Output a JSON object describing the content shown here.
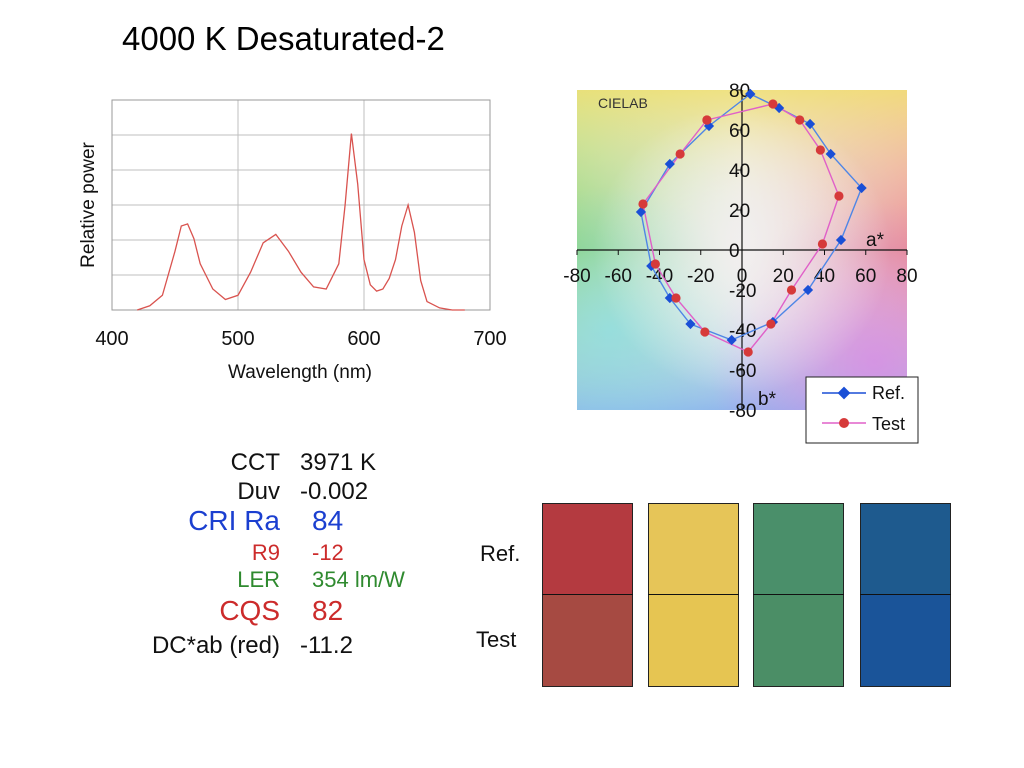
{
  "title": "4000 K  Desaturated-2",
  "chart_data": [
    {
      "type": "line",
      "title": "",
      "xlabel": "Wavelength (nm)",
      "ylabel": "Relative power",
      "xlim": [
        400,
        700
      ],
      "ylim": [
        0,
        1
      ],
      "x_ticks": [
        "400",
        "500",
        "600",
        "700"
      ],
      "grid": true,
      "series": [
        {
          "color": "#d9534f",
          "x": [
            420,
            430,
            440,
            450,
            455,
            460,
            465,
            470,
            480,
            490,
            500,
            510,
            520,
            530,
            540,
            550,
            560,
            570,
            580,
            585,
            590,
            595,
            600,
            605,
            610,
            615,
            620,
            625,
            630,
            635,
            640,
            645,
            650,
            660,
            670,
            680
          ],
          "y": [
            0.0,
            0.02,
            0.07,
            0.28,
            0.4,
            0.41,
            0.34,
            0.22,
            0.1,
            0.05,
            0.07,
            0.18,
            0.32,
            0.36,
            0.28,
            0.18,
            0.11,
            0.1,
            0.22,
            0.5,
            0.84,
            0.6,
            0.24,
            0.12,
            0.09,
            0.1,
            0.15,
            0.24,
            0.4,
            0.5,
            0.37,
            0.14,
            0.04,
            0.01,
            0.0,
            0.0
          ]
        }
      ]
    },
    {
      "type": "scatter",
      "title": "CIELAB",
      "xlabel": "a*",
      "ylabel": "b*",
      "xlim": [
        -80,
        80
      ],
      "ylim": [
        -80,
        80
      ],
      "x_ticks": [
        "-80",
        "-60",
        "-40",
        "-20",
        "0",
        "20",
        "40",
        "60",
        "80"
      ],
      "y_ticks": [
        "80",
        "60",
        "40",
        "20",
        "0",
        "-20",
        "-40",
        "-60",
        "-80"
      ],
      "legend": "bottom-right",
      "series": [
        {
          "name": "Ref.",
          "color": "#1a4fd6",
          "marker": "diamond",
          "points": [
            [
              4,
              78
            ],
            [
              18,
              71
            ],
            [
              33,
              63
            ],
            [
              43,
              48
            ],
            [
              58,
              31
            ],
            [
              48,
              5
            ],
            [
              32,
              -20
            ],
            [
              15,
              -36
            ],
            [
              -5,
              -45
            ],
            [
              -25,
              -37
            ],
            [
              -35,
              -24
            ],
            [
              -44,
              -8
            ],
            [
              -49,
              19
            ],
            [
              -35,
              43
            ],
            [
              -16,
              62
            ],
            [
              4,
              78
            ]
          ]
        },
        {
          "name": "Test",
          "color": "#d63a3a",
          "marker": "circle",
          "points": [
            [
              -17,
              65
            ],
            [
              15,
              73
            ],
            [
              28,
              65
            ],
            [
              38,
              50
            ],
            [
              47,
              27
            ],
            [
              39,
              3
            ],
            [
              24,
              -20
            ],
            [
              14,
              -37
            ],
            [
              3,
              -51
            ],
            [
              -18,
              -41
            ],
            [
              -32,
              -24
            ],
            [
              -42,
              -7
            ],
            [
              -48,
              23
            ],
            [
              -30,
              48
            ],
            [
              -17,
              65
            ]
          ]
        }
      ]
    }
  ],
  "metrics": [
    {
      "label": "CCT",
      "value": "3971  K",
      "color": "#111111",
      "size": 24
    },
    {
      "label": "Duv",
      "value": "-0.002",
      "color": "#111111",
      "size": 24
    },
    {
      "label": "CRI Ra",
      "value": "84",
      "color": "#1b3fd0",
      "size": 28
    },
    {
      "label": "R9",
      "value": "-12",
      "color": "#cc2b2b",
      "size": 22
    },
    {
      "label": "LER",
      "value": "354  lm/W",
      "color": "#2f8a2f",
      "size": 22
    },
    {
      "label": "CQS",
      "value": "82",
      "color": "#cc2b2b",
      "size": 28
    },
    {
      "label": "DC*ab (red)",
      "value": "-11.2",
      "color": "#111111",
      "size": 24
    }
  ],
  "swatches": {
    "ref_label": "Ref.",
    "test_label": "Test",
    "items": [
      {
        "ref": "#b43a40",
        "test": "#a64a42"
      },
      {
        "ref": "#e6c558",
        "test": "#e6c552"
      },
      {
        "ref": "#4a8f6a",
        "test": "#4b8e66"
      },
      {
        "ref": "#1e5a8e",
        "test": "#1a5499"
      }
    ]
  }
}
